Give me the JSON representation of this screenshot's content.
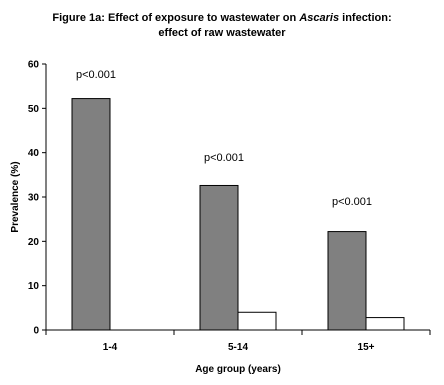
{
  "chart_data": {
    "type": "bar",
    "title_prefix": "Figure 1a:  Effect of exposure to wastewater on ",
    "title_italic": "Ascaris",
    "title_suffix": " infection:",
    "title_line2": "effect of raw wastewater",
    "xlabel": "Age group (years)",
    "ylabel": "Prevalence (%)",
    "ylim": [
      0,
      60
    ],
    "yticks": [
      0,
      10,
      20,
      30,
      40,
      50,
      60
    ],
    "categories": [
      "1-4",
      "5-14",
      "15+"
    ],
    "series": [
      {
        "values": [
          52.2,
          32.6,
          22.2
        ],
        "color": "#808080"
      },
      {
        "values": [
          0,
          4.0,
          2.8
        ],
        "color": "#ffffff"
      }
    ],
    "annotations": [
      "p<0.001",
      "p<0.001",
      "p<0.001"
    ],
    "grid": false,
    "legend": "none"
  }
}
